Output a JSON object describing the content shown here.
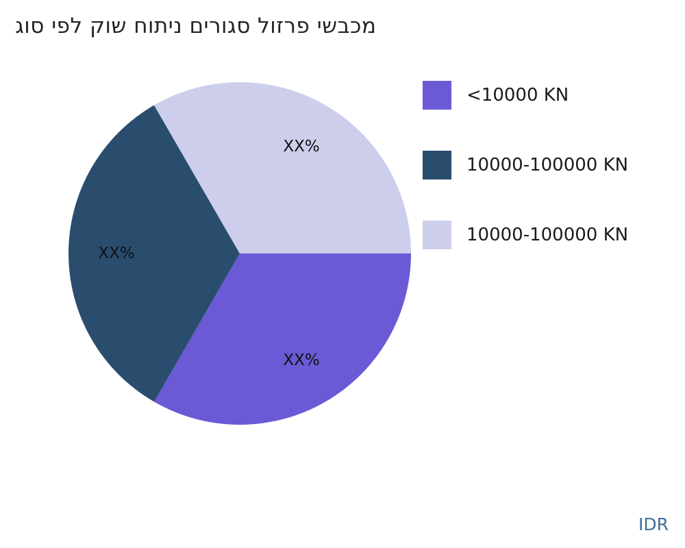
{
  "watermark": "IDR",
  "colors": {
    "background": "#ffffff",
    "title_text": "#232323",
    "legend_text": "#1a1a1a",
    "watermark_text": "#3E6D9C",
    "slice_purple": "#6A5AD6",
    "slice_navy": "#2A4D6E",
    "slice_lavender": "#CDCDEC"
  },
  "chart_data": {
    "type": "pie",
    "title": "מכבשי פרזול סגורים ניתוח שוק לפי סוג",
    "title_visual_order": "גוס יפל קוש חותינ םירוגס לוזרפ ישבכמ",
    "legend_position": "right",
    "start_angle_deg": 0,
    "direction": "clockwise",
    "slices": [
      {
        "label": "<10000 KN",
        "value": 33.33,
        "pct_label": "XX%",
        "color": "#6A5AD6"
      },
      {
        "label": "10000-100000 KN",
        "value": 33.33,
        "pct_label": "XX%",
        "color": "#2A4D6E"
      },
      {
        "label": "10000-100000 KN",
        "value": 33.34,
        "pct_label": "XX%",
        "color": "#CDCDEC"
      }
    ]
  }
}
